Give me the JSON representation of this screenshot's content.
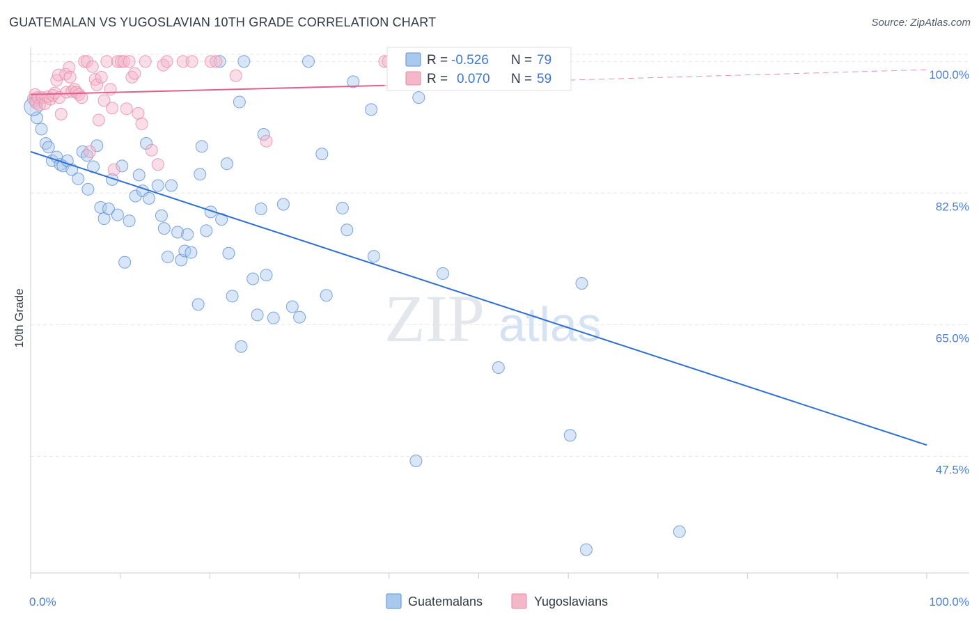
{
  "title": "GUATEMALAN VS YUGOSLAVIAN 10TH GRADE CORRELATION CHART",
  "source": "Source: ZipAtlas.com",
  "watermark": {
    "zip": "ZIP",
    "atlas": "atlas"
  },
  "colors": {
    "blue_fill": "#a9c8ee",
    "blue_stroke": "#5b8fd6",
    "blue_line": "#2f6fd0",
    "pink_fill": "#f4b6c9",
    "pink_stroke": "#e889a8",
    "pink_line": "#e05f8c",
    "grid": "#e4e6ea",
    "tick_label": "#4a7fd0"
  },
  "legend": {
    "blue": {
      "r_label": "R = ",
      "r_value": "-0.526",
      "n_label": "N = ",
      "n_value": "79"
    },
    "pink": {
      "r_label": "R = ",
      "r_value": "0.070",
      "n_label": "N = ",
      "n_value": "59"
    }
  },
  "chart_data": {
    "type": "scatter",
    "title": "GUATEMALAN VS YUGOSLAVIAN 10TH GRADE CORRELATION CHART",
    "xlabel": "",
    "ylabel": "10th Grade",
    "xlim": [
      0,
      100
    ],
    "ylim": [
      32,
      101.5
    ],
    "x_tick_labels": [
      "0.0%",
      "100.0%"
    ],
    "y_ticks": [
      {
        "value": 100.0,
        "label": "100.0%"
      },
      {
        "value": 82.5,
        "label": "82.5%"
      },
      {
        "value": 65.0,
        "label": "65.0%"
      },
      {
        "value": 47.5,
        "label": "47.5%"
      }
    ],
    "grid": true,
    "legend_placement": "bottom-center",
    "series": [
      {
        "name": "Guatemalans",
        "color": "#a9c8ee",
        "trend": {
          "x": [
            0,
            100
          ],
          "y": [
            88.0,
            49.0
          ]
        },
        "points": [
          [
            0.5,
            94.8
          ],
          [
            0.7,
            92.5
          ],
          [
            1.2,
            91.0
          ],
          [
            1.7,
            89.1
          ],
          [
            2.0,
            88.6
          ],
          [
            2.4,
            86.8
          ],
          [
            2.9,
            87.3
          ],
          [
            3.3,
            86.3
          ],
          [
            3.6,
            86.1
          ],
          [
            4.1,
            86.8
          ],
          [
            4.6,
            85.6
          ],
          [
            5.3,
            84.4
          ],
          [
            5.8,
            88.0
          ],
          [
            6.3,
            87.5
          ],
          [
            6.4,
            83.0
          ],
          [
            7.0,
            86.0
          ],
          [
            7.4,
            88.8
          ],
          [
            7.8,
            80.6
          ],
          [
            8.2,
            79.1
          ],
          [
            8.7,
            80.4
          ],
          [
            9.1,
            84.3
          ],
          [
            9.7,
            79.6
          ],
          [
            10.2,
            86.1
          ],
          [
            10.5,
            73.3
          ],
          [
            11.0,
            78.8
          ],
          [
            11.7,
            82.1
          ],
          [
            12.1,
            84.9
          ],
          [
            12.5,
            82.8
          ],
          [
            12.9,
            89.1
          ],
          [
            13.2,
            81.8
          ],
          [
            14.2,
            83.5
          ],
          [
            14.6,
            79.5
          ],
          [
            14.9,
            77.8
          ],
          [
            15.3,
            74.0
          ],
          [
            15.7,
            83.5
          ],
          [
            16.4,
            77.3
          ],
          [
            16.8,
            73.6
          ],
          [
            17.2,
            74.8
          ],
          [
            17.5,
            77.0
          ],
          [
            17.9,
            74.6
          ],
          [
            18.7,
            67.7
          ],
          [
            18.9,
            85.0
          ],
          [
            19.1,
            88.7
          ],
          [
            19.6,
            77.5
          ],
          [
            20.1,
            80.0
          ],
          [
            21.3,
            79.0
          ],
          [
            21.9,
            86.4
          ],
          [
            22.1,
            74.5
          ],
          [
            22.5,
            68.8
          ],
          [
            23.3,
            94.6
          ],
          [
            23.5,
            62.1
          ],
          [
            23.8,
            100.0
          ],
          [
            24.8,
            71.1
          ],
          [
            25.3,
            66.3
          ],
          [
            25.7,
            80.4
          ],
          [
            26.0,
            90.3
          ],
          [
            26.3,
            71.6
          ],
          [
            27.1,
            65.9
          ],
          [
            28.2,
            81.0
          ],
          [
            29.2,
            67.4
          ],
          [
            30.0,
            66.0
          ],
          [
            31.0,
            100.0
          ],
          [
            32.5,
            87.7
          ],
          [
            33.0,
            68.9
          ],
          [
            34.8,
            80.5
          ],
          [
            35.3,
            77.6
          ],
          [
            36.0,
            97.3
          ],
          [
            38.0,
            93.6
          ],
          [
            38.3,
            74.1
          ],
          [
            43.0,
            46.9
          ],
          [
            43.3,
            95.2
          ],
          [
            46.0,
            71.8
          ],
          [
            52.2,
            59.3
          ],
          [
            57.2,
            100.0
          ],
          [
            60.2,
            50.3
          ],
          [
            61.5,
            70.5
          ],
          [
            62.0,
            35.1
          ],
          [
            72.4,
            37.5
          ],
          [
            21.1,
            100.0
          ]
        ]
      },
      {
        "name": "Yugoslavians",
        "color": "#f4b6c9",
        "trend": {
          "x": [
            0,
            39.5
          ],
          "y": [
            95.6,
            96.8
          ],
          "extended": {
            "x": [
              39.5,
              100
            ],
            "y": [
              96.8,
              98.9
            ]
          }
        },
        "points": [
          [
            0.3,
            95.0
          ],
          [
            0.5,
            95.6
          ],
          [
            0.6,
            94.5
          ],
          [
            0.8,
            95.2
          ],
          [
            1.0,
            94.2
          ],
          [
            1.3,
            95.2
          ],
          [
            1.6,
            94.4
          ],
          [
            1.9,
            95.3
          ],
          [
            2.2,
            95.0
          ],
          [
            2.5,
            95.5
          ],
          [
            2.7,
            95.8
          ],
          [
            2.9,
            97.5
          ],
          [
            3.1,
            98.2
          ],
          [
            3.2,
            95.2
          ],
          [
            3.4,
            93.0
          ],
          [
            3.9,
            98.3
          ],
          [
            4.0,
            95.9
          ],
          [
            4.3,
            99.2
          ],
          [
            4.4,
            97.9
          ],
          [
            4.6,
            96.0
          ],
          [
            4.9,
            96.3
          ],
          [
            5.1,
            95.9
          ],
          [
            5.4,
            95.6
          ],
          [
            5.7,
            95.2
          ],
          [
            6.0,
            100.0
          ],
          [
            6.3,
            100.0
          ],
          [
            6.6,
            88.0
          ],
          [
            6.9,
            99.3
          ],
          [
            7.2,
            97.6
          ],
          [
            7.4,
            96.9
          ],
          [
            7.6,
            92.2
          ],
          [
            7.9,
            97.9
          ],
          [
            8.2,
            94.8
          ],
          [
            8.5,
            100.0
          ],
          [
            8.9,
            96.3
          ],
          [
            9.1,
            93.8
          ],
          [
            9.3,
            85.6
          ],
          [
            9.7,
            100.0
          ],
          [
            10.1,
            100.0
          ],
          [
            10.4,
            100.0
          ],
          [
            10.7,
            93.7
          ],
          [
            11.0,
            100.0
          ],
          [
            11.3,
            97.9
          ],
          [
            11.6,
            98.4
          ],
          [
            12.0,
            93.1
          ],
          [
            12.4,
            91.7
          ],
          [
            12.8,
            100.0
          ],
          [
            13.5,
            88.2
          ],
          [
            14.2,
            86.3
          ],
          [
            14.8,
            99.5
          ],
          [
            15.2,
            100.0
          ],
          [
            17.0,
            100.0
          ],
          [
            18.0,
            100.0
          ],
          [
            20.1,
            100.0
          ],
          [
            20.7,
            100.0
          ],
          [
            22.9,
            98.1
          ],
          [
            26.3,
            89.4
          ],
          [
            39.5,
            100.0
          ],
          [
            39.9,
            100.0
          ]
        ]
      }
    ]
  },
  "bottom_legend": [
    {
      "label": "Guatemalans"
    },
    {
      "label": "Yugoslavians"
    }
  ]
}
